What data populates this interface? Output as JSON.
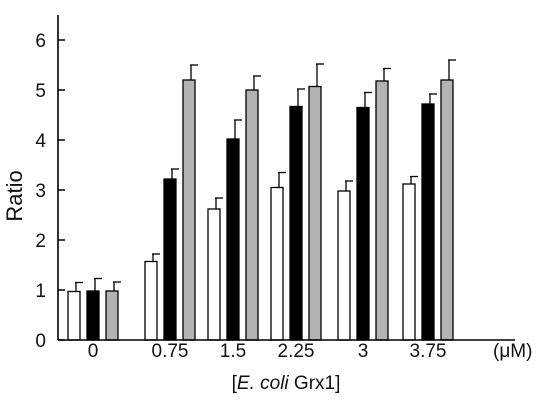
{
  "chart_data": {
    "type": "bar",
    "categories": [
      "0",
      "0.75",
      "1.5",
      "2.25",
      "3",
      "3.75"
    ],
    "x_unit": "(μM)",
    "xlabel_parts": {
      "open": "[",
      "italic": "E. coli",
      "rest": " Grx1]"
    },
    "ylabel": "Ratio",
    "ylim": [
      0,
      6.5
    ],
    "yticks": [
      "0",
      "1",
      "2",
      "3",
      "4",
      "5",
      "6"
    ],
    "grid": false,
    "legend": "none",
    "series": [
      {
        "color": "#ffffff",
        "values": [
          0.97,
          1.57,
          2.62,
          3.05,
          2.98,
          3.12
        ],
        "errors": [
          0.18,
          0.15,
          0.22,
          0.3,
          0.2,
          0.15
        ]
      },
      {
        "color": "#000000",
        "values": [
          0.98,
          3.22,
          4.02,
          4.67,
          4.65,
          4.72
        ],
        "errors": [
          0.25,
          0.2,
          0.38,
          0.35,
          0.3,
          0.2
        ]
      },
      {
        "color": "#b3b3b3",
        "values": [
          0.98,
          5.2,
          5.0,
          5.07,
          5.18,
          5.2
        ],
        "errors": [
          0.18,
          0.3,
          0.28,
          0.45,
          0.25,
          0.4
        ]
      }
    ]
  }
}
